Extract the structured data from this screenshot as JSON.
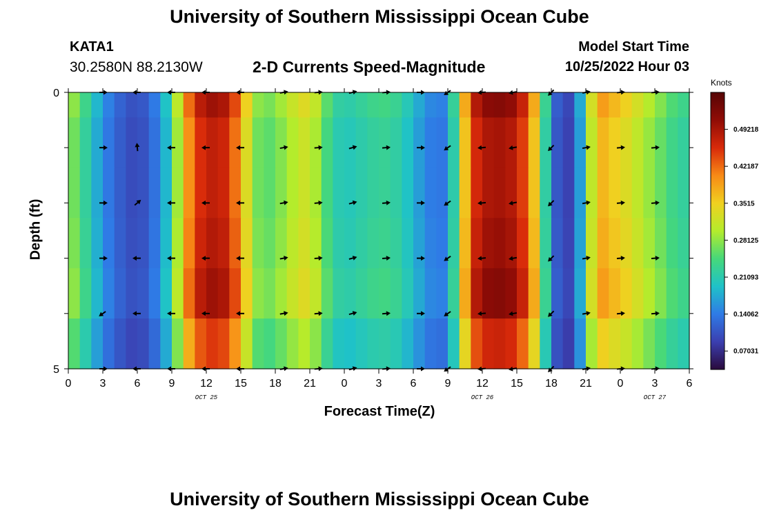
{
  "title": "University of Southern Mississippi Ocean Cube",
  "title_repeat": "University of Southern Mississippi Ocean Cube",
  "station": {
    "id": "KATA1",
    "coords": "30.2580N  88.2130W"
  },
  "subtitle": "2-D Currents Speed-Magnitude",
  "model_start": {
    "label": "Model Start Time",
    "value": "10/25/2022 Hour 03"
  },
  "chart_data": {
    "type": "heatmap",
    "title": "2-D Currents Speed-Magnitude",
    "xlabel": "Forecast Time(Z)",
    "ylabel": "Depth (ft)",
    "x_hours": [
      0,
      54
    ],
    "ylim": [
      0,
      5
    ],
    "y_ticks": [
      0,
      5
    ],
    "x_ticks": [
      0,
      3,
      6,
      9,
      12,
      15,
      18,
      21,
      24,
      27,
      30,
      33,
      36,
      39,
      42,
      45,
      48,
      51,
      54
    ],
    "x_tick_labels": [
      "0",
      "3",
      "6",
      "9",
      "12",
      "15",
      "18",
      "21",
      "0",
      "3",
      "6",
      "9",
      "12",
      "15",
      "18",
      "21",
      "0",
      "3",
      "6"
    ],
    "date_labels": [
      {
        "hour": 12,
        "text": "OCT 25"
      },
      {
        "hour": 36,
        "text": "OCT 26"
      },
      {
        "hour": 51,
        "text": "OCT 27"
      }
    ],
    "colorbar": {
      "unit": "Knots",
      "range": [
        0.0352,
        0.5625
      ],
      "tick_values": [
        0.07031,
        0.14062,
        0.21093,
        0.28125,
        0.3515,
        0.42187,
        0.49218
      ],
      "tick_labels": [
        "0.07031",
        "0.14062",
        "0.21093",
        "0.28125",
        "0.3515",
        "0.42187",
        "0.49218"
      ],
      "colors": [
        "#2a0a3c",
        "#3b3fb0",
        "#2f7be6",
        "#1fc2c8",
        "#46d87a",
        "#b4ec2c",
        "#f0d020",
        "#f88a16",
        "#d82a0a",
        "#900c06",
        "#560505"
      ]
    },
    "speed_profile": {
      "hours": [
        0,
        1,
        2,
        3,
        4,
        5,
        6,
        7,
        8,
        9,
        10,
        11,
        12,
        13,
        14,
        15,
        16,
        17,
        18,
        19,
        20,
        21,
        22,
        23,
        24,
        25,
        26,
        27,
        28,
        29,
        30,
        31,
        32,
        33,
        34,
        35,
        36,
        37,
        38,
        39,
        40,
        41,
        42,
        43,
        44,
        45,
        46,
        47,
        48,
        49,
        50,
        51,
        52,
        53,
        54
      ],
      "speed_knots": [
        0.3,
        0.26,
        0.21,
        0.16,
        0.13,
        0.11,
        0.1,
        0.12,
        0.16,
        0.23,
        0.38,
        0.46,
        0.5,
        0.5,
        0.48,
        0.4,
        0.3,
        0.26,
        0.28,
        0.3,
        0.33,
        0.34,
        0.28,
        0.23,
        0.21,
        0.22,
        0.23,
        0.24,
        0.24,
        0.22,
        0.19,
        0.16,
        0.14,
        0.15,
        0.3,
        0.46,
        0.51,
        0.52,
        0.52,
        0.5,
        0.44,
        0.32,
        0.14,
        0.09,
        0.1,
        0.25,
        0.4,
        0.38,
        0.36,
        0.34,
        0.31,
        0.29,
        0.26,
        0.24,
        0.23
      ]
    },
    "depth_rows_factor": [
      1.0,
      0.95,
      0.95,
      0.97,
      1.0,
      0.9
    ],
    "vector_rows_depth": [
      0,
      1,
      2,
      3,
      4,
      5
    ],
    "vector_hours": [
      3,
      6,
      9,
      12,
      15,
      18.7,
      21.7,
      24.7,
      27.6,
      30.6,
      33,
      36,
      38.7,
      42,
      45,
      48,
      51
    ],
    "vector_directions_deg": [
      0,
      180,
      180,
      180,
      180,
      10,
      5,
      15,
      5,
      0,
      215,
      185,
      190,
      225,
      10,
      5,
      5
    ],
    "vector_overrides": [
      {
        "row": 1,
        "col": 1,
        "deg": 95
      },
      {
        "row": 2,
        "col": 1,
        "deg": 40
      },
      {
        "row": 4,
        "col": 0,
        "deg": 215
      }
    ]
  }
}
